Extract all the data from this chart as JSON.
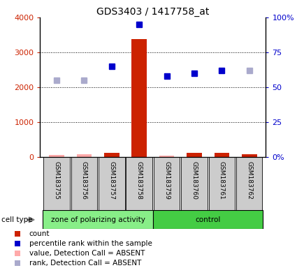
{
  "title": "GDS3403 / 1417758_at",
  "samples": [
    "GSM183755",
    "GSM183756",
    "GSM183757",
    "GSM183758",
    "GSM183759",
    "GSM183760",
    "GSM183761",
    "GSM183762"
  ],
  "groups": [
    "zone of polarizing activity",
    "control"
  ],
  "group_sizes": [
    4,
    4
  ],
  "count_values": [
    55,
    75,
    115,
    3380,
    35,
    105,
    115,
    80
  ],
  "count_absent": [
    true,
    true,
    false,
    false,
    true,
    false,
    false,
    false
  ],
  "rank_values": [
    55,
    55,
    65,
    95,
    58,
    60,
    62,
    62
  ],
  "rank_absent": [
    true,
    true,
    false,
    false,
    false,
    false,
    false,
    true
  ],
  "ylim_left": [
    0,
    4000
  ],
  "ylim_right": [
    0,
    100
  ],
  "yticks_left": [
    0,
    1000,
    2000,
    3000,
    4000
  ],
  "ytick_labels_left": [
    "0",
    "1000",
    "2000",
    "3000",
    "4000"
  ],
  "yticks_right": [
    0,
    25,
    50,
    75,
    100
  ],
  "ytick_labels_right": [
    "0%",
    "25",
    "50",
    "75",
    "100%"
  ],
  "color_count": "#CC2200",
  "color_count_absent": "#FFAAAA",
  "color_rank": "#0000CC",
  "color_rank_absent": "#AAAACC",
  "color_group1": "#88EE88",
  "color_group2": "#44CC44",
  "bg_label": "#CCCCCC",
  "title_fontsize": 10,
  "rank_scale": 40
}
